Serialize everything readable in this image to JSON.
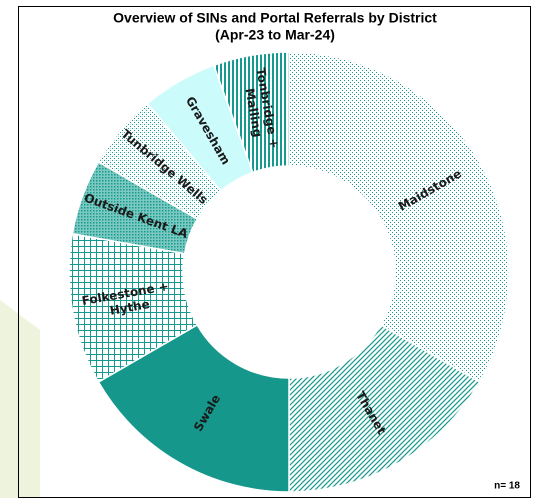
{
  "chart_data": {
    "type": "donut",
    "title": "Overview of SINs and Portal Referrals by District",
    "subtitle": "(Apr-23 to Mar-24)",
    "categories": [
      "Maidstone",
      "Thanet",
      "Swale",
      "Folkestone + Hythe",
      "Outside Kent LA",
      "Tunbridge Wells",
      "Gravesham",
      "Tonbridge + Malling"
    ],
    "values": [
      6,
      3,
      3,
      2,
      1,
      1,
      1,
      1
    ],
    "colors": [
      "#16998e",
      "#16998e",
      "#16978c",
      "#16998e",
      "#16998e",
      "#16998e",
      "#ccfbfb",
      "#16998e"
    ],
    "note": "n= 18"
  }
}
